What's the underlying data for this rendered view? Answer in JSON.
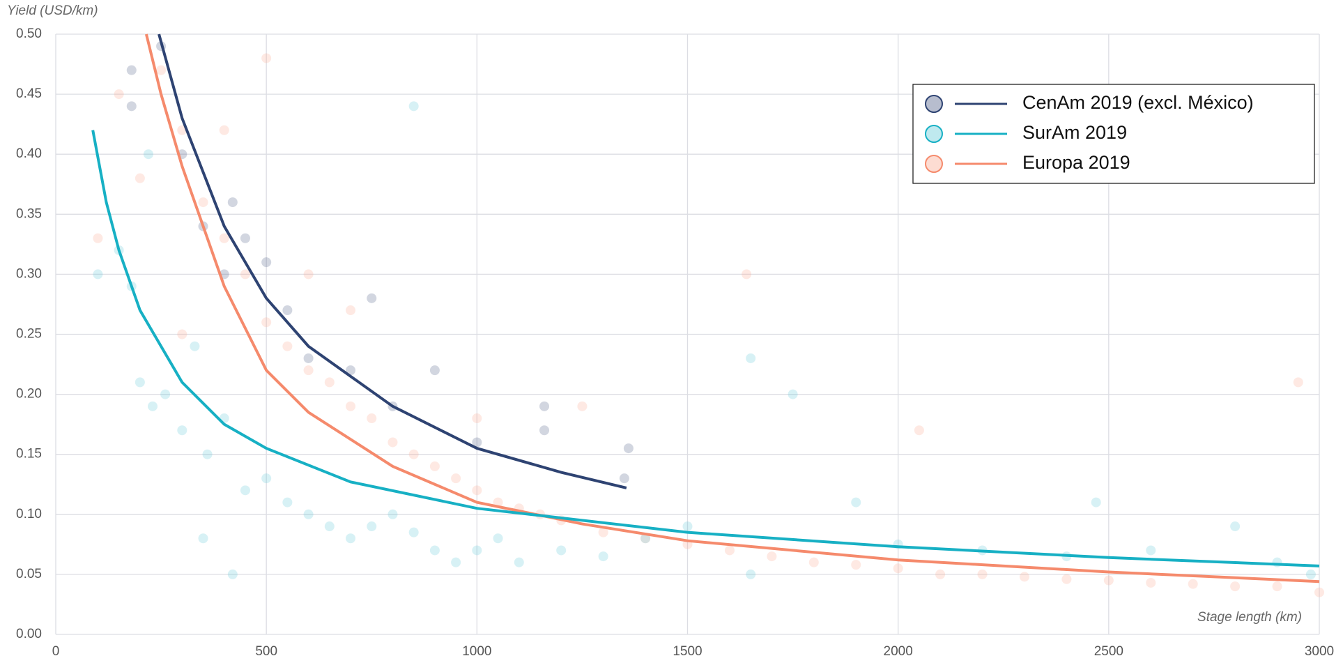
{
  "chart_data": {
    "type": "scatter",
    "y_title": "Yield (USD/km)",
    "x_title": "Stage length (km)",
    "xlim": [
      0,
      3000
    ],
    "xticks": [
      0,
      500,
      1000,
      1500,
      2000,
      2500,
      3000
    ],
    "ylim": [
      0,
      0.5
    ],
    "yticks": [
      {
        "value": 0,
        "label": "0.00"
      },
      {
        "value": 0.05,
        "label": "0.05"
      },
      {
        "value": 0.1,
        "label": "0.10"
      },
      {
        "value": 0.15,
        "label": "0.15"
      },
      {
        "value": 0.2,
        "label": "0.20"
      },
      {
        "value": 0.25,
        "label": "0.25"
      },
      {
        "value": 0.3,
        "label": "0.30"
      },
      {
        "value": 0.35,
        "label": "0.35"
      },
      {
        "value": 0.4,
        "label": "0.40"
      },
      {
        "value": 0.45,
        "label": "0.45"
      },
      {
        "value": 0.5,
        "label": "0.50"
      }
    ],
    "grid": true,
    "legend": "upper right",
    "series": [
      {
        "name": "Europa 2019",
        "color": "#f58a6c",
        "point_color": "#fba88f",
        "x": [
          100,
          150,
          200,
          250,
          300,
          350,
          400,
          450,
          500,
          550,
          600,
          650,
          700,
          750,
          800,
          850,
          900,
          950,
          1000,
          1050,
          1100,
          1150,
          1200,
          1300,
          1400,
          1500,
          1600,
          1700,
          1800,
          1900,
          2000,
          2100,
          2200,
          2300,
          2400,
          2500,
          2600,
          2700,
          2800,
          2900,
          3000,
          300,
          400,
          500,
          600,
          700,
          1000,
          1250,
          1640,
          2050,
          2950
        ],
        "values": [
          0.33,
          0.45,
          0.38,
          0.47,
          0.42,
          0.36,
          0.33,
          0.3,
          0.26,
          0.24,
          0.22,
          0.21,
          0.19,
          0.18,
          0.16,
          0.15,
          0.14,
          0.13,
          0.12,
          0.11,
          0.105,
          0.1,
          0.095,
          0.085,
          0.08,
          0.075,
          0.07,
          0.065,
          0.06,
          0.058,
          0.055,
          0.05,
          0.05,
          0.048,
          0.046,
          0.045,
          0.043,
          0.042,
          0.04,
          0.04,
          0.035,
          0.25,
          0.42,
          0.48,
          0.3,
          0.27,
          0.18,
          0.19,
          0.3,
          0.17,
          0.21
        ],
        "fit_x": [
          215,
          250,
          300,
          400,
          500,
          600,
          800,
          1000,
          1250,
          1500,
          2000,
          2500,
          3000
        ],
        "fit_values": [
          0.5,
          0.45,
          0.39,
          0.29,
          0.22,
          0.185,
          0.14,
          0.11,
          0.092,
          0.078,
          0.062,
          0.052,
          0.044
        ]
      },
      {
        "name": "SurAm 2019",
        "color": "#17b0c4",
        "point_color": "#5ec8d6",
        "x": [
          100,
          150,
          180,
          200,
          230,
          260,
          300,
          330,
          360,
          400,
          450,
          500,
          550,
          600,
          650,
          700,
          750,
          800,
          850,
          900,
          950,
          1000,
          1050,
          1100,
          1200,
          1300,
          1400,
          1500,
          1650,
          1750,
          1900,
          2000,
          2200,
          2400,
          2470,
          2600,
          2800,
          2900,
          2980,
          220,
          350,
          420,
          850,
          1650
        ],
        "values": [
          0.3,
          0.32,
          0.29,
          0.21,
          0.19,
          0.2,
          0.17,
          0.24,
          0.15,
          0.18,
          0.12,
          0.13,
          0.11,
          0.1,
          0.09,
          0.08,
          0.09,
          0.1,
          0.085,
          0.07,
          0.06,
          0.07,
          0.08,
          0.06,
          0.07,
          0.065,
          0.08,
          0.09,
          0.05,
          0.2,
          0.11,
          0.075,
          0.07,
          0.065,
          0.11,
          0.07,
          0.09,
          0.06,
          0.05,
          0.4,
          0.08,
          0.05,
          0.44,
          0.23
        ],
        "fit_x": [
          88,
          120,
          150,
          200,
          300,
          400,
          500,
          700,
          1000,
          1500,
          2000,
          2500,
          3000
        ],
        "fit_values": [
          0.42,
          0.36,
          0.32,
          0.27,
          0.21,
          0.175,
          0.155,
          0.127,
          0.105,
          0.085,
          0.073,
          0.064,
          0.057
        ]
      },
      {
        "name": "CenAm 2019 (excl. México)",
        "color": "#2e4372",
        "point_color": "#4a5b85",
        "x": [
          180,
          180,
          250,
          300,
          350,
          400,
          420,
          450,
          500,
          550,
          600,
          700,
          750,
          800,
          900,
          1000,
          1160,
          1350,
          1360,
          1160
        ],
        "values": [
          0.47,
          0.44,
          0.49,
          0.4,
          0.34,
          0.3,
          0.36,
          0.33,
          0.31,
          0.27,
          0.23,
          0.22,
          0.28,
          0.19,
          0.22,
          0.16,
          0.17,
          0.13,
          0.155,
          0.19
        ],
        "fit_x": [
          245,
          300,
          400,
          500,
          600,
          800,
          1000,
          1200,
          1355
        ],
        "fit_values": [
          0.5,
          0.43,
          0.34,
          0.28,
          0.24,
          0.19,
          0.155,
          0.135,
          0.122
        ]
      }
    ],
    "legend_order": [
      2,
      1,
      0
    ]
  }
}
